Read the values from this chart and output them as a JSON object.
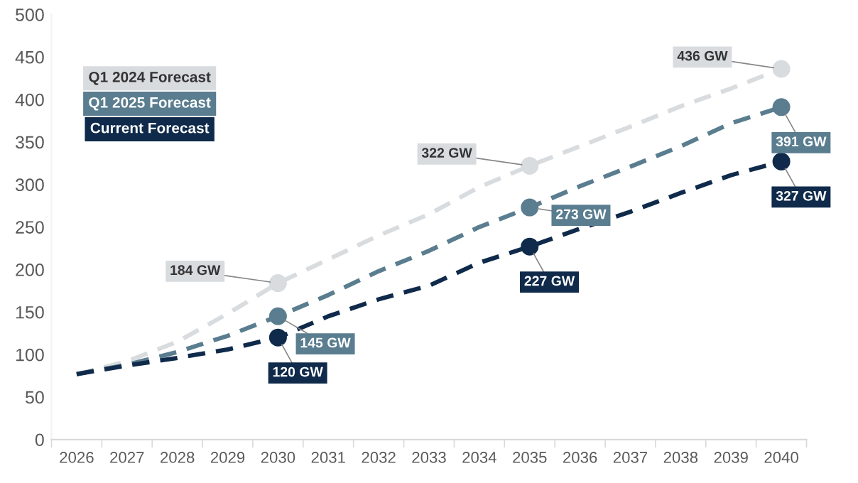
{
  "chart_data": {
    "type": "line",
    "categories": [
      "2026",
      "2027",
      "2028",
      "2029",
      "2030",
      "2031",
      "2032",
      "2033",
      "2034",
      "2035",
      "2036",
      "2037",
      "2038",
      "2039",
      "2040"
    ],
    "series": [
      {
        "name": "Q1 2024 Forecast",
        "color": "#d9dcdf",
        "values": [
          77,
          92,
          115,
          148,
          184,
          212,
          240,
          265,
          297,
          322,
          345,
          368,
          392,
          413,
          436
        ],
        "value_labels": [
          null,
          null,
          null,
          null,
          "184 GW",
          null,
          null,
          null,
          null,
          "322 GW",
          null,
          null,
          null,
          null,
          "436 GW"
        ]
      },
      {
        "name": "Q1 2025 Forecast",
        "color": "#5a7d8f",
        "values": [
          77,
          88,
          103,
          122,
          145,
          170,
          198,
          222,
          250,
          273,
          298,
          321,
          345,
          372,
          391
        ],
        "value_labels": [
          null,
          null,
          null,
          null,
          "145 GW",
          null,
          null,
          null,
          null,
          "273 GW",
          null,
          null,
          null,
          null,
          "391 GW"
        ]
      },
      {
        "name": "Current Forecast",
        "color": "#0f2a4a",
        "values": [
          77,
          87,
          96,
          106,
          120,
          145,
          165,
          181,
          208,
          227,
          248,
          268,
          290,
          311,
          327
        ],
        "value_labels": [
          null,
          null,
          null,
          null,
          "120 GW",
          null,
          null,
          null,
          null,
          "227 GW",
          null,
          null,
          null,
          null,
          "327 GW"
        ]
      }
    ],
    "ylim": [
      0,
      500
    ],
    "yticks": [
      0,
      50,
      100,
      150,
      200,
      250,
      300,
      350,
      400,
      450,
      500
    ],
    "grid": false,
    "legend": "top left",
    "line_style": "dashed"
  }
}
